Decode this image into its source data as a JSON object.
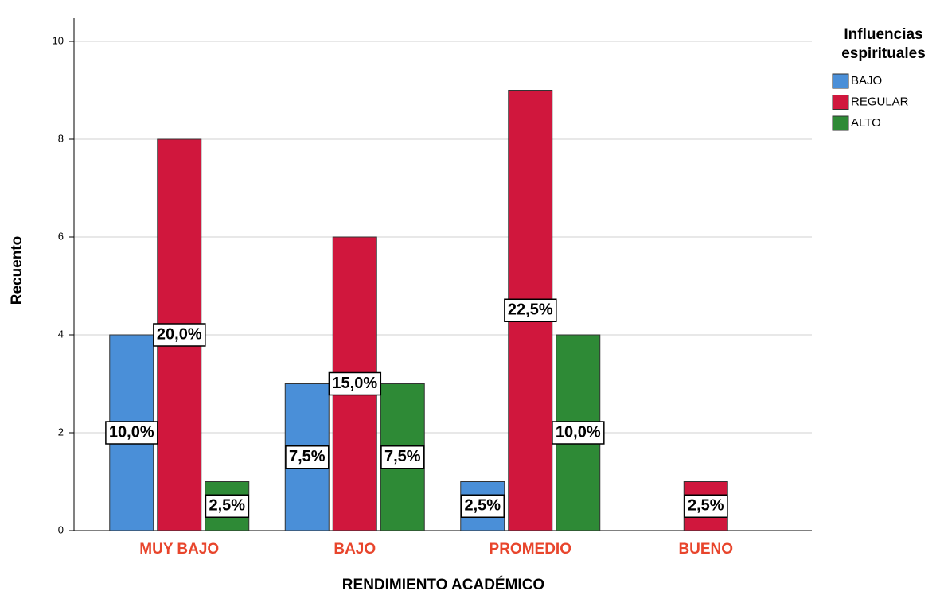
{
  "chart_data": {
    "type": "bar",
    "x_label": "RENDIMIENTO ACADÉMICO",
    "y_label": "Recuento",
    "legend_title": "Influencias espirituales",
    "categories": [
      "MUY BAJO",
      "BAJO",
      "PROMEDIO",
      "BUENO"
    ],
    "series": [
      {
        "name": "BAJO",
        "color": "#4a8fd8",
        "values": [
          4,
          3,
          1,
          0
        ],
        "percent_labels": [
          "10,0%",
          "7,5%",
          "2,5%",
          null
        ]
      },
      {
        "name": "REGULAR",
        "color": "#d0173d",
        "values": [
          8,
          6,
          9,
          1
        ],
        "percent_labels": [
          "20,0%",
          "15,0%",
          "22,5%",
          "2,5%"
        ]
      },
      {
        "name": "ALTO",
        "color": "#2e8a36",
        "values": [
          1,
          3,
          4,
          0
        ],
        "percent_labels": [
          "2,5%",
          "7,5%",
          "10,0%",
          null
        ]
      }
    ],
    "ylim": [
      0,
      10
    ],
    "yticks": [
      0,
      2,
      4,
      6,
      8,
      10
    ],
    "grid": true,
    "legend": "right"
  }
}
